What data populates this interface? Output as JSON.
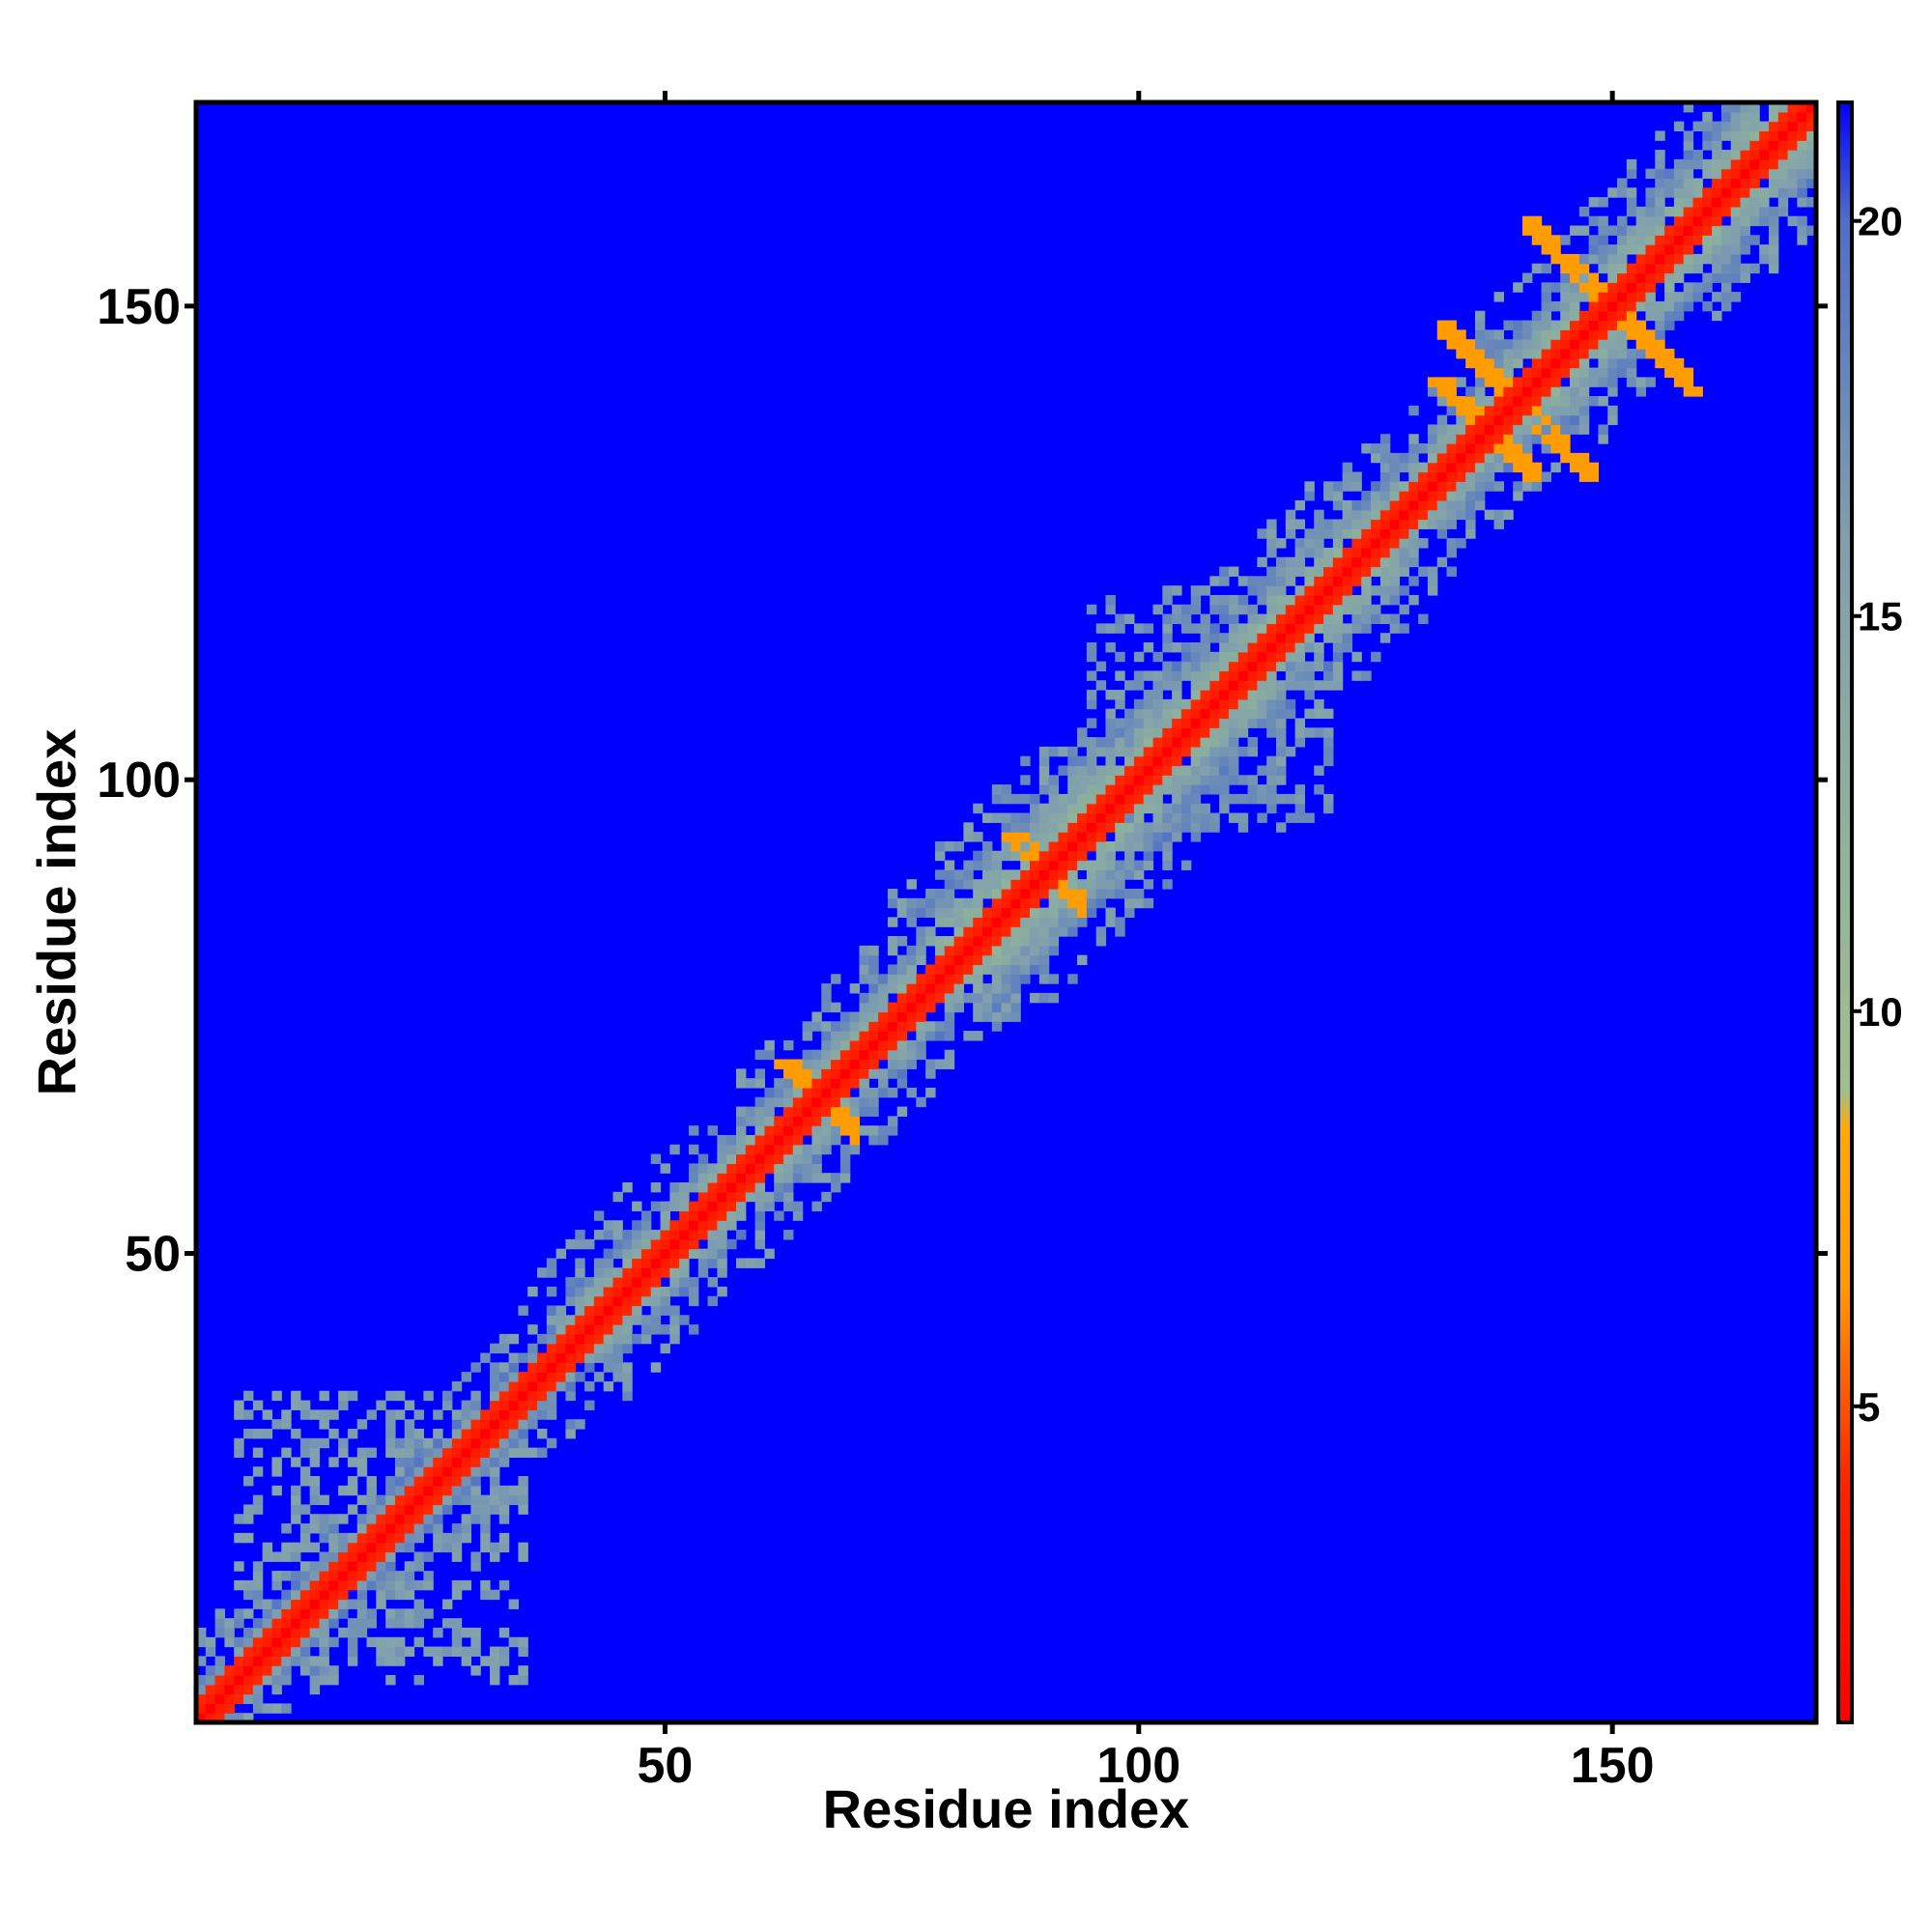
{
  "chart_data": {
    "type": "heatmap",
    "title": "",
    "xlabel": "Residue index",
    "ylabel": "Residue index",
    "n_residues": 171,
    "xlim": [
      1,
      171
    ],
    "ylim": [
      1,
      171
    ],
    "x_ticks": [
      50,
      100,
      150
    ],
    "y_ticks": [
      50,
      100,
      150
    ],
    "x_tick_labels": [
      "50",
      "100",
      "150"
    ],
    "y_tick_labels": [
      "50",
      "100",
      "150"
    ],
    "colorbar": {
      "range": [
        1,
        21.5
      ],
      "ticks": [
        5,
        10,
        15,
        20
      ],
      "tick_labels": [
        "5",
        "10",
        "15",
        "20"
      ],
      "stops": [
        {
          "value": 1,
          "color": "#ff0000"
        },
        {
          "value": 4,
          "color": "#ff2200"
        },
        {
          "value": 6.5,
          "color": "#ff9900"
        },
        {
          "value": 8.5,
          "color": "#ffaa00"
        },
        {
          "value": 9,
          "color": "#9fc08a"
        },
        {
          "value": 12,
          "color": "#8fb39b"
        },
        {
          "value": 16,
          "color": "#7f9fae"
        },
        {
          "value": 20,
          "color": "#4f6fc8"
        },
        {
          "value": 21.5,
          "color": "#0000ff"
        }
      ]
    },
    "background_value": 21.5,
    "diagonal_band": [
      {
        "from": 1,
        "to": 40,
        "width": 4
      },
      {
        "from": 40,
        "to": 60,
        "width": 6
      },
      {
        "from": 60,
        "to": 80,
        "width": 6
      },
      {
        "from": 80,
        "to": 100,
        "width": 9
      },
      {
        "from": 100,
        "to": 125,
        "width": 8
      },
      {
        "from": 125,
        "to": 140,
        "width": 6
      },
      {
        "from": 140,
        "to": 171,
        "width": 8
      }
    ],
    "contact_regions": [
      {
        "x": [
          134,
          142
        ],
        "y": [
          131,
          140
        ],
        "value": 7
      },
      {
        "x": [
          141,
          150
        ],
        "y": [
          150,
          159
        ],
        "value": 7
      },
      {
        "x": [
          150,
          158
        ],
        "y": [
          142,
          150
        ],
        "value": 7
      },
      {
        "x": [
          132,
          140
        ],
        "y": [
          140,
          148
        ],
        "value": 7
      },
      {
        "x": [
          65,
          70
        ],
        "y": [
          62,
          68
        ],
        "value": 7
      },
      {
        "x": [
          88,
          94
        ],
        "y": [
          86,
          93
        ],
        "value": 7
      },
      {
        "x": [
          95,
          120
        ],
        "y": [
          95,
          115
        ],
        "value": 16
      },
      {
        "x": [
          5,
          35
        ],
        "y": [
          5,
          35
        ],
        "value": 15
      }
    ]
  }
}
